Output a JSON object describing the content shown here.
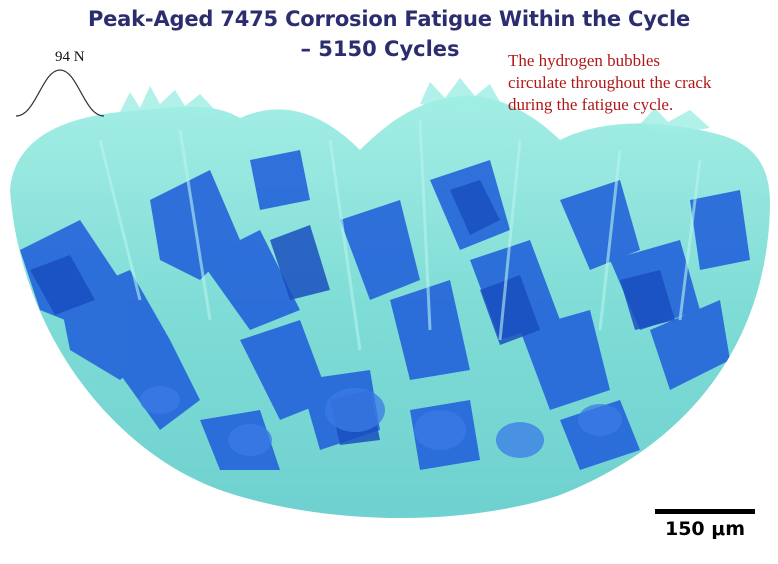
{
  "title": {
    "line1": "Peak-Aged 7475 Corrosion Fatigue Within the Cycle",
    "line2": "– 5150 Cycles"
  },
  "load_indicator": {
    "label": "94 N"
  },
  "annotation": {
    "line1": "The hydrogen bubbles",
    "line2": "circulate throughout the crack",
    "line3": "during the fatigue cycle."
  },
  "scale_bar": {
    "label": "150 μm"
  },
  "colors": {
    "title": "#2b2d6e",
    "annotation": "#b01818",
    "surface_light": "#8ee6de",
    "surface_dark": "#1f5fd6"
  }
}
